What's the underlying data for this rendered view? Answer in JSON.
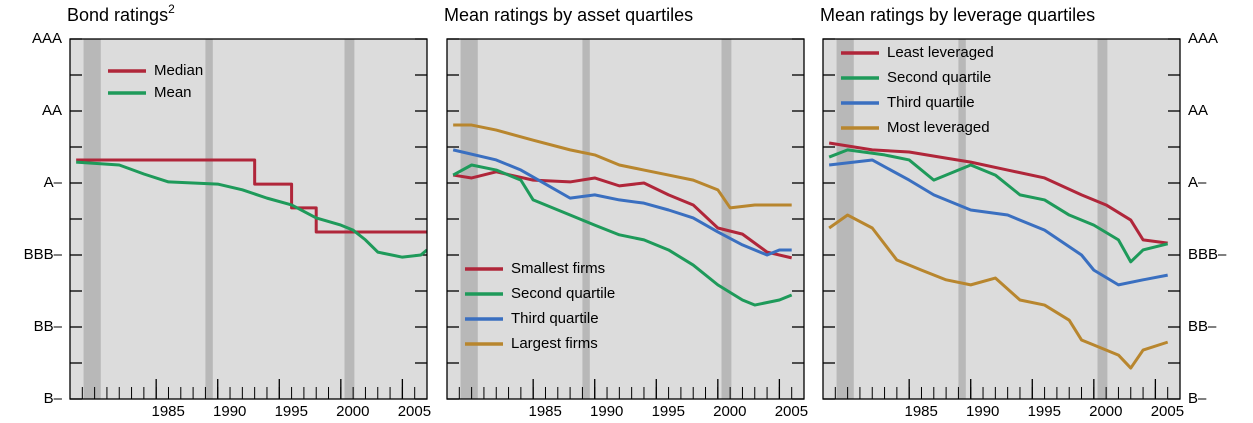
{
  "chart_data": [
    {
      "type": "line",
      "title": "Bond ratings",
      "title_note": "2",
      "xlim": [
        1978,
        2007
      ],
      "xticks": [
        1985,
        1990,
        1995,
        2000,
        2005
      ],
      "ylim": [
        0,
        10
      ],
      "yticks": [
        {
          "value": 0,
          "label": "B–"
        },
        1,
        {
          "value": 2,
          "label": "BB–"
        },
        3,
        {
          "value": 4,
          "label": "BBB–"
        },
        5,
        {
          "value": 6,
          "label": "A–"
        },
        7,
        {
          "value": 8,
          "label": "AA"
        },
        9,
        {
          "value": 10,
          "label": "AAA"
        }
      ],
      "ytick_side": "left",
      "legend": "upper left",
      "recessions": [
        [
          1979.1,
          1980.5
        ],
        [
          1989.0,
          1989.6
        ],
        [
          2000.3,
          2001.1
        ]
      ],
      "series": [
        {
          "name": "Median",
          "color": "#b0263a",
          "x": [
            1978.5,
            1993,
            1993,
            1996,
            1996,
            1998,
            1998,
            2007
          ],
          "values": [
            6.64,
            6.64,
            5.97,
            5.97,
            5.31,
            5.31,
            4.64,
            4.64
          ]
        },
        {
          "name": "Mean",
          "color": "#1e9a5a",
          "x": [
            1978.5,
            1982,
            1984,
            1986,
            1990,
            1992,
            1994,
            1996,
            1998,
            2000,
            2001,
            2002,
            2003,
            2005,
            2006.5,
            2007
          ],
          "values": [
            6.58,
            6.5,
            6.25,
            6.03,
            5.97,
            5.81,
            5.58,
            5.39,
            5.03,
            4.83,
            4.69,
            4.42,
            4.08,
            3.94,
            4.0,
            4.14
          ]
        }
      ]
    },
    {
      "type": "line",
      "title": "Mean ratings by asset quartiles",
      "xlim": [
        1978,
        2007
      ],
      "xticks": [
        1985,
        1990,
        1995,
        2000,
        2005
      ],
      "ylim": [
        0,
        10
      ],
      "yticks": [
        0,
        1,
        2,
        3,
        4,
        5,
        6,
        7,
        8,
        9,
        10
      ],
      "legend": "lower left",
      "recessions": [
        [
          1979.1,
          1980.5
        ],
        [
          1989.0,
          1989.6
        ],
        [
          2000.3,
          2001.1
        ]
      ],
      "series": [
        {
          "name": "Smallest firms",
          "color": "#b0263a",
          "x": [
            1978.5,
            1980,
            1982,
            1985,
            1988,
            1990,
            1992,
            1994,
            1996,
            1998,
            2000,
            2002,
            2004,
            2006
          ],
          "values": [
            6.22,
            6.14,
            6.31,
            6.08,
            6.03,
            6.14,
            5.92,
            6.0,
            5.67,
            5.39,
            4.75,
            4.58,
            4.08,
            3.92
          ]
        },
        {
          "name": "Second quartile",
          "color": "#1e9a5a",
          "x": [
            1978.5,
            1980,
            1982,
            1984,
            1985,
            1988,
            1990,
            1992,
            1994,
            1996,
            1998,
            2000,
            2002,
            2003,
            2005,
            2006
          ],
          "values": [
            6.22,
            6.5,
            6.36,
            6.08,
            5.53,
            5.11,
            4.83,
            4.56,
            4.42,
            4.14,
            3.72,
            3.17,
            2.75,
            2.61,
            2.75,
            2.89
          ]
        },
        {
          "name": "Third quartile",
          "color": "#3a6fc0",
          "x": [
            1978.5,
            1982,
            1984,
            1986,
            1988,
            1990,
            1992,
            1994,
            1996,
            1998,
            2000,
            2002,
            2004,
            2005,
            2006
          ],
          "values": [
            6.92,
            6.64,
            6.36,
            5.97,
            5.58,
            5.67,
            5.53,
            5.44,
            5.25,
            5.03,
            4.64,
            4.28,
            4.0,
            4.14,
            4.14
          ]
        },
        {
          "name": "Largest firms",
          "color": "#b8862e",
          "x": [
            1978.5,
            1980,
            1982,
            1985,
            1988,
            1990,
            1992,
            1994,
            1996,
            1998,
            2000,
            2001,
            2003,
            2006
          ],
          "values": [
            7.61,
            7.61,
            7.47,
            7.19,
            6.92,
            6.78,
            6.5,
            6.36,
            6.22,
            6.08,
            5.81,
            5.31,
            5.39,
            5.39
          ]
        }
      ]
    },
    {
      "type": "line",
      "title": "Mean ratings by leverage quartiles",
      "xlim": [
        1978,
        2007
      ],
      "xticks": [
        1985,
        1990,
        1995,
        2000,
        2005
      ],
      "ylim": [
        0,
        10
      ],
      "yticks": [
        {
          "value": 0,
          "label": "B–"
        },
        1,
        {
          "value": 2,
          "label": "BB–"
        },
        3,
        {
          "value": 4,
          "label": "BBB–"
        },
        5,
        {
          "value": 6,
          "label": "A–"
        },
        7,
        {
          "value": 8,
          "label": "AA"
        },
        9,
        {
          "value": 10,
          "label": "AAA"
        }
      ],
      "ytick_side": "right",
      "legend": "upper left",
      "recessions": [
        [
          1979.1,
          1980.5
        ],
        [
          1989.0,
          1989.6
        ],
        [
          2000.3,
          2001.1
        ]
      ],
      "series": [
        {
          "name": "Least leveraged",
          "color": "#b0263a",
          "x": [
            1978.5,
            1982,
            1985,
            1988,
            1990,
            1993,
            1996,
            1999,
            2001,
            2003,
            2004,
            2006
          ],
          "values": [
            7.11,
            6.92,
            6.86,
            6.69,
            6.58,
            6.36,
            6.14,
            5.67,
            5.39,
            4.97,
            4.42,
            4.33
          ]
        },
        {
          "name": "Second quartile",
          "color": "#1e9a5a",
          "x": [
            1978.5,
            1980,
            1983,
            1985,
            1987,
            1990,
            1992,
            1994,
            1996,
            1998,
            2000,
            2002,
            2003,
            2004,
            2006
          ],
          "values": [
            6.72,
            6.92,
            6.78,
            6.64,
            6.08,
            6.5,
            6.22,
            5.67,
            5.53,
            5.11,
            4.83,
            4.42,
            3.81,
            4.14,
            4.31
          ]
        },
        {
          "name": "Third quartile",
          "color": "#3a6fc0",
          "x": [
            1978.5,
            1982,
            1985,
            1987,
            1990,
            1993,
            1996,
            1999,
            2000,
            2002,
            2004,
            2006
          ],
          "values": [
            6.5,
            6.64,
            6.08,
            5.67,
            5.25,
            5.11,
            4.69,
            4.0,
            3.58,
            3.17,
            3.31,
            3.44
          ]
        },
        {
          "name": "Most leveraged",
          "color": "#b8862e",
          "x": [
            1978.5,
            1980,
            1982,
            1984,
            1986,
            1988,
            1990,
            1992,
            1994,
            1996,
            1998,
            1999,
            2000,
            2002,
            2003,
            2004,
            2006
          ],
          "values": [
            4.75,
            5.11,
            4.75,
            3.86,
            3.58,
            3.31,
            3.17,
            3.36,
            2.75,
            2.61,
            2.19,
            1.64,
            1.5,
            1.22,
            0.86,
            1.36,
            1.58
          ]
        }
      ]
    }
  ]
}
